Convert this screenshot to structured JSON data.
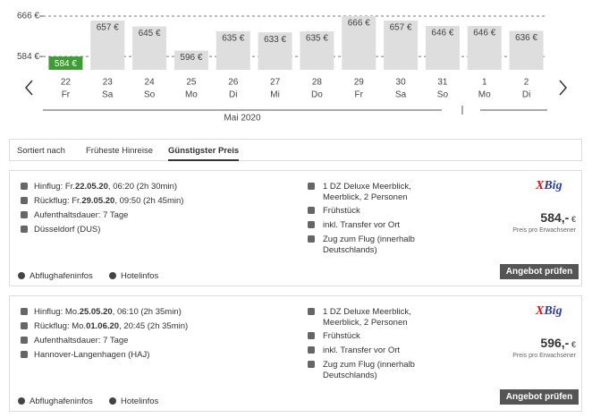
{
  "chart_data": {
    "type": "bar",
    "categories": [
      "22",
      "23",
      "24",
      "25",
      "26",
      "27",
      "28",
      "29",
      "30",
      "31",
      "1",
      "2"
    ],
    "weekdays": [
      "Fr",
      "Sa",
      "So",
      "Mo",
      "Di",
      "Mi",
      "Do",
      "Fr",
      "Sa",
      "So",
      "Mo",
      "Di"
    ],
    "values": [
      584,
      657,
      645,
      596,
      635,
      633,
      635,
      666,
      657,
      646,
      646,
      636
    ],
    "value_labels": [
      "584 €",
      "657 €",
      "645 €",
      "596 €",
      "635 €",
      "633 €",
      "635 €",
      "666 €",
      "657 €",
      "646 €",
      "646 €",
      "636 €"
    ],
    "bar_colors": [
      "#3f9c35",
      "#dedede",
      "#dedede",
      "#dedede",
      "#dedede",
      "#dedede",
      "#dedede",
      "#dedede",
      "#dedede",
      "#dedede",
      "#dedede",
      "#dedede"
    ],
    "ylim": [
      557,
      666
    ],
    "yticks": [
      {
        "value": 666,
        "label": "666 €"
      },
      {
        "value": 584,
        "label": "584 €"
      }
    ],
    "grid": true,
    "month": "Mai 2020"
  },
  "tabs": {
    "label": "Sortiert nach",
    "items": [
      "Früheste Hinreise",
      "Günstigster Preis"
    ]
  },
  "offers": [
    {
      "outbound": [
        "Hinflug: Fr.",
        "22.05.20",
        ", 06:20 (2h 30min)"
      ],
      "return": [
        "Rückflug: Fr.",
        "29.05.20",
        ", 09:50 (2h 45min)"
      ],
      "stay": "Aufenthaltsdauer: 7 Tage",
      "airport": "Düsseldorf (DUS)",
      "room": "1 DZ Deluxe Meerblick, Meerblick, 2 Personen",
      "board": "Frühstück",
      "transfer": "inkl. Transfer vor Ort",
      "train": "Zug zum Flug (innerhalb Deutschlands)",
      "logo": [
        "X",
        "Big"
      ],
      "price": "584,-",
      "currency": "€",
      "price_note": "Preis pro Erwachsener",
      "links": [
        "Abflughafeninfos",
        "Hotelinfos"
      ],
      "button": "Angebot prüfen"
    },
    {
      "outbound": [
        "Hinflug: Mo.",
        "25.05.20",
        ", 06:10 (2h 35min)"
      ],
      "return": [
        "Rückflug: Mo.",
        "01.06.20",
        ", 20:45 (2h 35min)"
      ],
      "stay": "Aufenthaltsdauer: 7 Tage",
      "airport": "Hannover-Langenhagen (HAJ)",
      "room": "1 DZ Deluxe Meerblick, Meerblick, 2 Personen",
      "board": "Frühstück",
      "transfer": "inkl. Transfer vor Ort",
      "train": "Zug zum Flug (innerhalb Deutschlands)",
      "logo": [
        "X",
        "Big"
      ],
      "price": "596,-",
      "currency": "€",
      "price_note": "Preis pro Erwachsener",
      "links": [
        "Abflughafeninfos",
        "Hotelinfos"
      ],
      "button": "Angebot prüfen"
    }
  ]
}
